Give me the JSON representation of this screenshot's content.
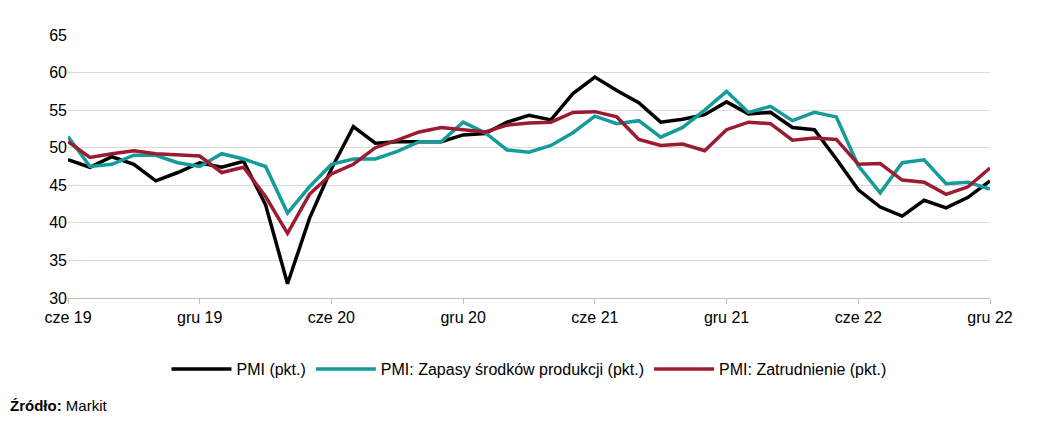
{
  "chart_data": {
    "type": "line",
    "categories": [
      "cze 19",
      null,
      null,
      null,
      null,
      null,
      "gru 19",
      null,
      null,
      null,
      null,
      null,
      "cze 20",
      null,
      null,
      null,
      null,
      null,
      "gru 20",
      null,
      null,
      null,
      null,
      null,
      "cze 21",
      null,
      null,
      null,
      null,
      null,
      "gru 21",
      null,
      null,
      null,
      null,
      null,
      "cze 22",
      null,
      null,
      null,
      null,
      null,
      "gru 22"
    ],
    "series": [
      {
        "name": "PMI (pkt.)",
        "color": "#000000",
        "values": [
          48.4,
          47.4,
          48.8,
          47.8,
          45.6,
          46.7,
          48.0,
          47.4,
          48.2,
          42.4,
          31.9,
          40.6,
          47.2,
          52.8,
          50.6,
          50.8,
          50.8,
          50.8,
          51.7,
          51.9,
          53.4,
          54.3,
          53.7,
          57.2,
          59.4,
          57.6,
          56.0,
          53.4,
          53.8,
          54.4,
          56.1,
          54.5,
          54.7,
          52.7,
          52.4,
          48.5,
          44.4,
          42.1,
          40.9,
          43.0,
          42.0,
          43.4,
          45.6
        ]
      },
      {
        "name": "PMI: Zapasy środków produkcji (pkt.)",
        "color": "#169b9b",
        "values": [
          51.5,
          47.5,
          47.8,
          49.0,
          49.0,
          48.0,
          47.5,
          49.2,
          48.5,
          47.5,
          41.3,
          44.8,
          47.8,
          48.5,
          48.5,
          49.5,
          50.8,
          50.8,
          53.4,
          52.0,
          49.7,
          49.4,
          50.3,
          52.0,
          54.2,
          53.2,
          53.6,
          51.4,
          52.7,
          55.0,
          57.5,
          54.7,
          55.5,
          53.6,
          54.7,
          54.1,
          47.6,
          44.0,
          48.0,
          48.4,
          45.2,
          45.4,
          44.5
        ]
      },
      {
        "name": "PMI: Zatrudnienie (pkt.)",
        "color": "#9b1b30",
        "values": [
          50.8,
          48.7,
          49.2,
          49.6,
          49.2,
          49.1,
          48.9,
          46.7,
          47.4,
          43.5,
          38.6,
          43.8,
          46.5,
          47.8,
          50.0,
          51.0,
          52.1,
          52.7,
          52.4,
          52.1,
          53.0,
          53.3,
          53.4,
          54.7,
          54.8,
          54.1,
          51.1,
          50.3,
          50.5,
          49.6,
          52.4,
          53.4,
          53.2,
          51.0,
          51.3,
          51.1,
          47.8,
          47.9,
          45.7,
          45.4,
          43.8,
          44.8,
          47.3
        ]
      }
    ],
    "ylim": [
      30,
      65
    ],
    "yticks": [
      30,
      35,
      40,
      45,
      50,
      55,
      60,
      65
    ],
    "grid": true,
    "legend": "bottom",
    "annotations": [
      {
        "text": "Źródło: Markit"
      }
    ]
  }
}
